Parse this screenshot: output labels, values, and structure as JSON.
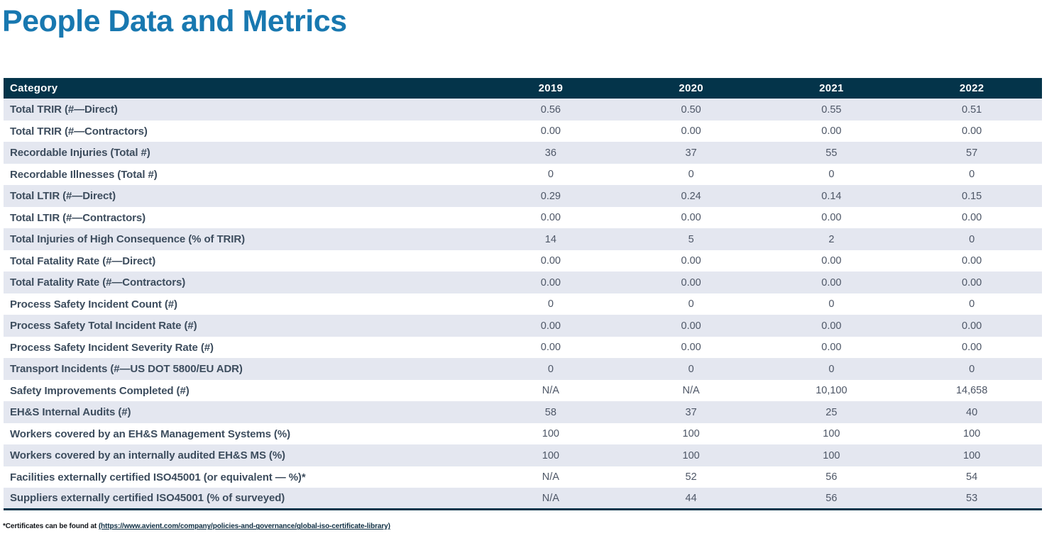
{
  "page": {
    "title": "People Data and Metrics"
  },
  "colors": {
    "accent_blue": "#1878b0",
    "header_bg": "#04344a",
    "row_alt_bg": "#e4e7f0",
    "category_text": "#3d4d5e",
    "value_text": "#4d5666"
  },
  "table": {
    "columns": [
      "Category",
      "2019",
      "2020",
      "2021",
      "2022"
    ],
    "rows": [
      {
        "category": "Total TRIR (#—Direct)",
        "values": [
          "0.56",
          "0.50",
          "0.55",
          "0.51"
        ]
      },
      {
        "category": "Total TRIR (#—Contractors)",
        "values": [
          "0.00",
          "0.00",
          "0.00",
          "0.00"
        ]
      },
      {
        "category": "Recordable Injuries (Total #)",
        "values": [
          "36",
          "37",
          "55",
          "57"
        ]
      },
      {
        "category": "Recordable Illnesses (Total #)",
        "values": [
          "0",
          "0",
          "0",
          "0"
        ]
      },
      {
        "category": "Total LTIR (#—Direct)",
        "values": [
          "0.29",
          "0.24",
          "0.14",
          "0.15"
        ]
      },
      {
        "category": "Total LTIR (#—Contractors)",
        "values": [
          "0.00",
          "0.00",
          "0.00",
          "0.00"
        ]
      },
      {
        "category": "Total Injuries of High Consequence (% of TRIR)",
        "values": [
          "14",
          "5",
          "2",
          "0"
        ]
      },
      {
        "category": "Total Fatality Rate (#—Direct)",
        "values": [
          "0.00",
          "0.00",
          "0.00",
          "0.00"
        ]
      },
      {
        "category": "Total Fatality Rate (#—Contractors)",
        "values": [
          "0.00",
          "0.00",
          "0.00",
          "0.00"
        ]
      },
      {
        "category": "Process Safety Incident Count (#)",
        "values": [
          "0",
          "0",
          "0",
          "0"
        ]
      },
      {
        "category": "Process Safety Total Incident Rate (#)",
        "values": [
          "0.00",
          "0.00",
          "0.00",
          "0.00"
        ]
      },
      {
        "category": "Process Safety Incident Severity Rate (#)",
        "values": [
          "0.00",
          "0.00",
          "0.00",
          "0.00"
        ]
      },
      {
        "category": "Transport Incidents (#—US DOT 5800/EU ADR)",
        "values": [
          "0",
          "0",
          "0",
          "0"
        ]
      },
      {
        "category": "Safety Improvements Completed (#)",
        "values": [
          "N/A",
          "N/A",
          "10,100",
          "14,658"
        ]
      },
      {
        "category": "EH&S Internal Audits (#)",
        "values": [
          "58",
          "37",
          "25",
          "40"
        ]
      },
      {
        "category": "Workers covered by an EH&S Management Systems (%)",
        "values": [
          "100",
          "100",
          "100",
          "100"
        ]
      },
      {
        "category": "Workers covered by an internally audited EH&S MS (%)",
        "values": [
          "100",
          "100",
          "100",
          "100"
        ]
      },
      {
        "category": "Facilities externally certified ISO45001 (or equivalent — %)*",
        "values": [
          "N/A",
          "52",
          "56",
          "54"
        ]
      },
      {
        "category": "Suppliers externally certified ISO45001 (% of surveyed)",
        "values": [
          "N/A",
          "44",
          "56",
          "53"
        ]
      }
    ]
  },
  "footnote": {
    "prefix": "*Certificates can be found at ",
    "link": "(https://www.avient.com/company/policies-and-governance/global-iso-certificate-library)"
  }
}
